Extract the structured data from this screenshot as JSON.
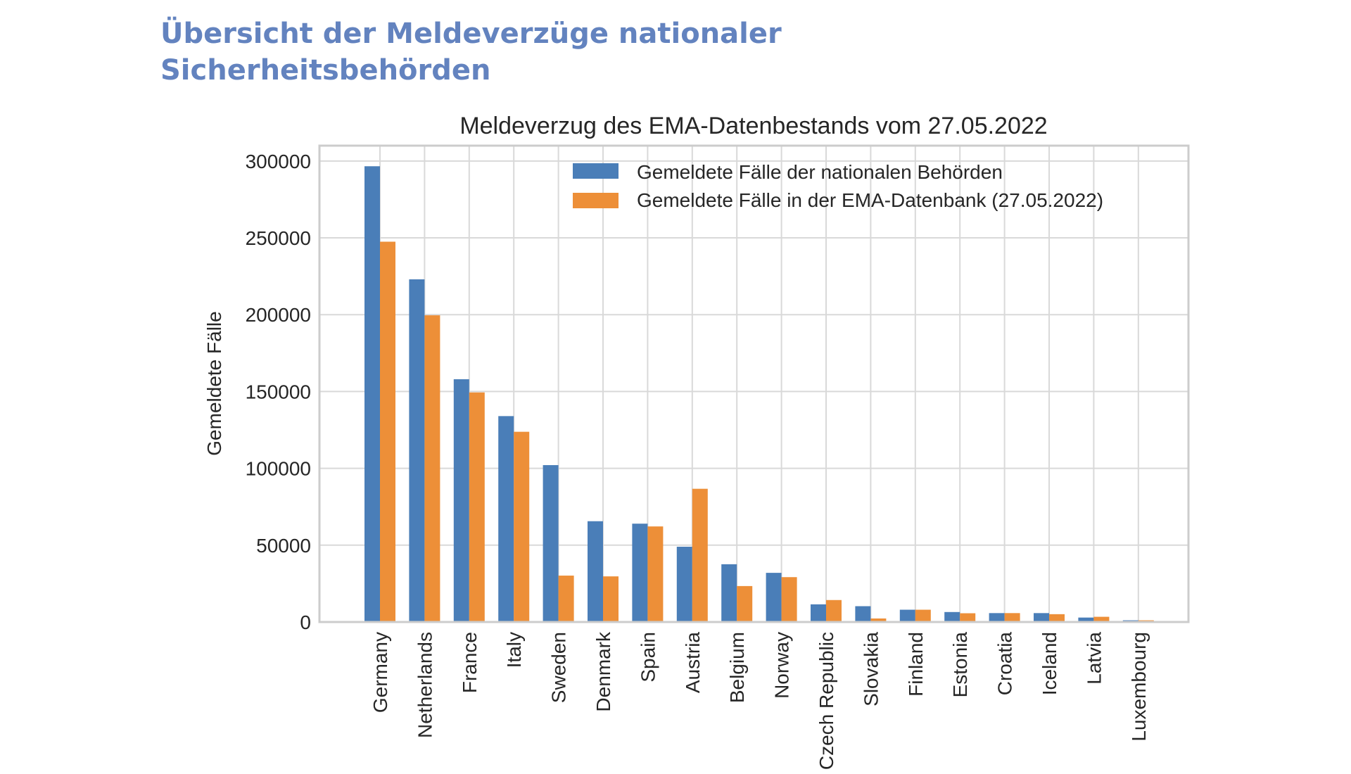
{
  "header": {
    "title_line1": "Übersicht der Meldeverzüge nationaler",
    "title_line2": "Sicherheitsbehörden"
  },
  "colors": {
    "series1": "#4a7eb8",
    "series2": "#ed8f38",
    "header": "#6383bf"
  },
  "chart_data": {
    "type": "bar",
    "title": "Meldeverzug des EMA-Datenbestands vom 27.05.2022",
    "xlabel": "",
    "ylabel": "Gemeldete Fälle",
    "ylim": [
      0,
      310000
    ],
    "yticks": [
      0,
      50000,
      100000,
      150000,
      200000,
      250000,
      300000
    ],
    "ytick_labels": [
      "0",
      "50000",
      "100000",
      "150000",
      "200000",
      "250000",
      "300000"
    ],
    "grid": true,
    "legend_position": "top-right",
    "categories": [
      "Germany",
      "Netherlands",
      "France",
      "Italy",
      "Sweden",
      "Denmark",
      "Spain",
      "Austria",
      "Belgium",
      "Norway",
      "Czech Republic",
      "Slovakia",
      "Finland",
      "Estonia",
      "Croatia",
      "Iceland",
      "Latvia",
      "Luxembourg"
    ],
    "series": [
      {
        "name": "Gemeldete Fälle der nationalen Behörden",
        "color": "#4a7eb8",
        "values": [
          296600,
          223000,
          158000,
          134000,
          102100,
          65600,
          64000,
          49000,
          37600,
          32000,
          11500,
          10300,
          8000,
          6500,
          5800,
          5800,
          2900,
          1100
        ]
      },
      {
        "name": "Gemeldete Fälle in der EMA-Datenbank (27.05.2022)",
        "color": "#ed8f38",
        "values": [
          247500,
          199600,
          149400,
          123800,
          30200,
          29700,
          62200,
          86700,
          23400,
          29200,
          14300,
          2300,
          8000,
          5700,
          5800,
          5100,
          3400,
          1100
        ]
      }
    ]
  }
}
